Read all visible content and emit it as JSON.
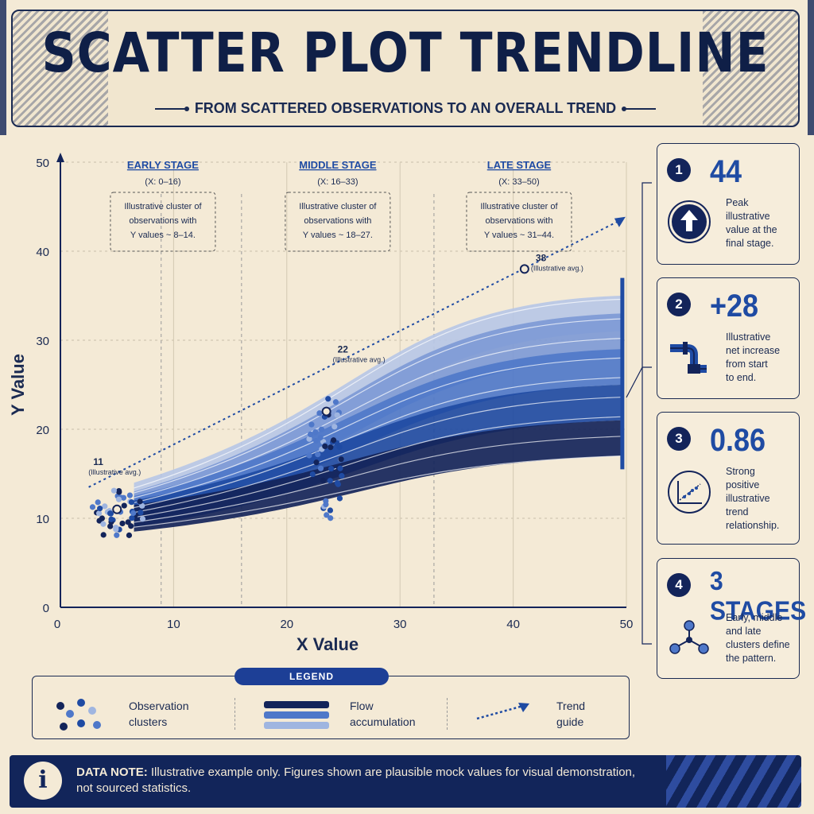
{
  "header": {
    "title": "SCATTER PLOT TRENDLINE",
    "subtitle": "FROM SCATTERED OBSERVATIONS TO AN OVERALL TREND"
  },
  "colors": {
    "navy": "#13245a",
    "blue": "#1f4ba3",
    "mid_blue": "#4f78c9",
    "light_blue": "#9fb5e0",
    "paper": "#f4ead6"
  },
  "chart_data": {
    "type": "scatter",
    "xlabel": "X Value",
    "ylabel": "Y Value",
    "xlim": [
      0,
      50
    ],
    "ylim": [
      0,
      50
    ],
    "x_ticks": [
      "0",
      "10",
      "20",
      "30",
      "40",
      "50"
    ],
    "y_ticks": [
      "0",
      "10",
      "20",
      "30",
      "40",
      "50"
    ],
    "stages": [
      {
        "label": "EARLY STAGE",
        "range": "(X: 0–16)",
        "note": [
          "Illustrative cluster of",
          "observations with",
          "Y values ~ 8–14."
        ]
      },
      {
        "label": "MIDDLE STAGE",
        "range": "(X: 16–33)",
        "note": [
          "Illustrative cluster of",
          "observations with",
          "Y values ~ 18–27."
        ]
      },
      {
        "label": "LATE STAGE",
        "range": "(X: 33–50)",
        "note": [
          "Illustrative cluster of",
          "observations with",
          "Y values ~ 31–44."
        ]
      }
    ],
    "trend_points": [
      {
        "x": 5,
        "y": 11,
        "label": "11",
        "sublabel": "(Illustrative avg.)"
      },
      {
        "x": 23.5,
        "y": 22,
        "label": "22",
        "sublabel": "(Illustrative avg.)"
      },
      {
        "x": 41,
        "y": 38,
        "label": "38",
        "sublabel": "(Illustrative avg.)"
      }
    ],
    "trend_line": {
      "x": [
        2.5,
        49.5
      ],
      "y": [
        13.5,
        43.5
      ]
    },
    "clusters": [
      {
        "stage": "early",
        "center_x": 5,
        "center_y": 10.5,
        "spread_x": 2.4,
        "spread_y": 3,
        "count": 48
      },
      {
        "stage": "middle",
        "center_x": 23.5,
        "center_y": 17,
        "spread_x": 1.6,
        "spread_y": 7.5,
        "count": 48
      }
    ]
  },
  "cards": [
    {
      "num": "1",
      "value": "44",
      "desc": [
        "Peak",
        "illustrative",
        "value at the",
        "final stage."
      ],
      "icon": "up-arrow-icon"
    },
    {
      "num": "2",
      "value": "+28",
      "desc": [
        "Illustrative",
        "net increase",
        "from start",
        "to end."
      ],
      "icon": "pipe-icon"
    },
    {
      "num": "3",
      "value": "0.86",
      "desc": [
        "Strong",
        "positive",
        "illustrative",
        "trend",
        "relationship."
      ],
      "icon": "trend-chart-icon"
    },
    {
      "num": "4",
      "value": "3 STAGES",
      "desc": [
        "Early, middle",
        "and late",
        "clusters define",
        "the pattern."
      ],
      "icon": "network-icon"
    }
  ],
  "legend": {
    "title": "LEGEND",
    "items": [
      {
        "label": [
          "Observation",
          "clusters"
        ]
      },
      {
        "label": [
          "Flow",
          "accumulation"
        ]
      },
      {
        "label": [
          "Trend",
          "guide"
        ]
      }
    ]
  },
  "note": {
    "label": "DATA NOTE:",
    "text": "Illustrative example only. Figures shown are plausible mock values for visual demonstration, not sourced statistics."
  }
}
